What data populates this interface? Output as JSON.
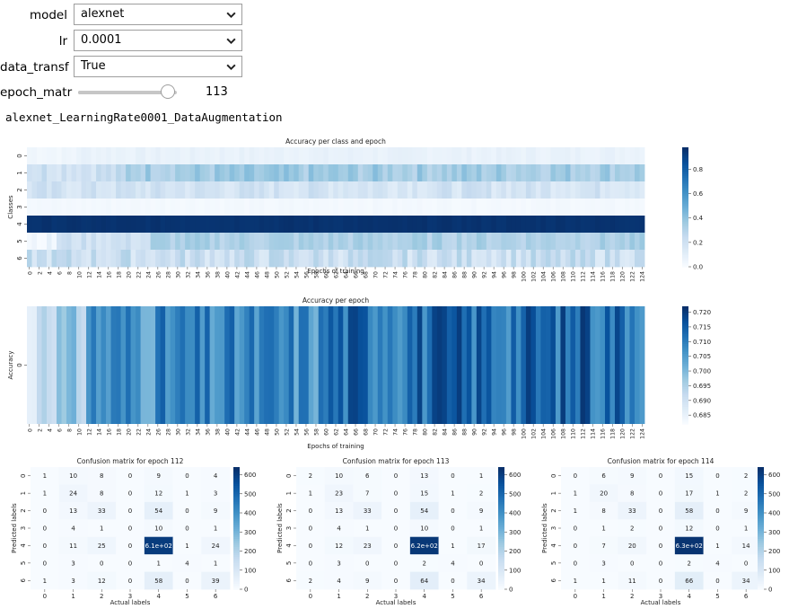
{
  "controls": {
    "model": {
      "label": "model",
      "value": "alexnet"
    },
    "lr": {
      "label": "lr",
      "value": "0.0001"
    },
    "data_transf": {
      "label": "data_transf",
      "value": "True"
    },
    "epoch_matr": {
      "label": "epoch_matr",
      "value": 113,
      "min": 0,
      "max": 124
    }
  },
  "output_title": "alexnet_LearningRate0001_DataAugmentation",
  "colors": {
    "cmap_light": "#f7fbff",
    "cmap_dark": "#08306b"
  },
  "chart_data": [
    {
      "type": "heatmap",
      "title": "Accuracy per class and epoch",
      "xlabel": "Epochs of training",
      "ylabel": "Classes",
      "rows": [
        "0",
        "1",
        "2",
        "3",
        "4",
        "5",
        "6"
      ],
      "epochs": 125,
      "colorbar": {
        "min": 0.0,
        "max": 0.98,
        "ticks": [
          "0.0",
          "0.2",
          "0.4",
          "0.6",
          "0.8"
        ]
      },
      "row_mean_values": [
        0.03,
        0.35,
        0.22,
        0.01,
        0.97,
        0.3,
        0.22
      ]
    },
    {
      "type": "heatmap",
      "title": "Accuracy per epoch",
      "xlabel": "Epochs of training",
      "ylabel": "Accuracy",
      "rows": [
        "0"
      ],
      "epochs": 125,
      "colorbar": {
        "min": 0.682,
        "max": 0.722,
        "ticks": [
          "0.685",
          "0.690",
          "0.695",
          "0.700",
          "0.705",
          "0.710",
          "0.715",
          "0.720"
        ]
      }
    },
    {
      "type": "heatmap",
      "title": "Confusion matrix for epoch 112",
      "xlabel": "Actual labels",
      "ylabel": "Predicted labels",
      "labels": [
        "0",
        "1",
        "2",
        "3",
        "4",
        "5",
        "6"
      ],
      "colorbar": {
        "min": 0,
        "max": 640,
        "ticks": [
          "0",
          "100",
          "200",
          "300",
          "400",
          "500",
          "600"
        ]
      },
      "values": [
        [
          1,
          10,
          8,
          0,
          9,
          0,
          4
        ],
        [
          1,
          24,
          8,
          0,
          12,
          1,
          3
        ],
        [
          0,
          13,
          33,
          0,
          54,
          0,
          9
        ],
        [
          0,
          4,
          1,
          0,
          10,
          0,
          1
        ],
        [
          0,
          11,
          25,
          0,
          610,
          1,
          24
        ],
        [
          0,
          3,
          0,
          0,
          1,
          4,
          1
        ],
        [
          1,
          3,
          12,
          0,
          58,
          0,
          39
        ]
      ],
      "text": [
        [
          "1",
          "10",
          "8",
          "0",
          "9",
          "0",
          "4"
        ],
        [
          "1",
          "24",
          "8",
          "0",
          "12",
          "1",
          "3"
        ],
        [
          "0",
          "13",
          "33",
          "0",
          "54",
          "0",
          "9"
        ],
        [
          "0",
          "4",
          "1",
          "0",
          "10",
          "0",
          "1"
        ],
        [
          "0",
          "11",
          "25",
          "0",
          "6.1e+02",
          "1",
          "24"
        ],
        [
          "0",
          "3",
          "0",
          "0",
          "1",
          "4",
          "1"
        ],
        [
          "1",
          "3",
          "12",
          "0",
          "58",
          "0",
          "39"
        ]
      ]
    },
    {
      "type": "heatmap",
      "title": "Confusion matrix for epoch 113",
      "xlabel": "Actual labels",
      "ylabel": "Predicted labels",
      "labels": [
        "0",
        "1",
        "2",
        "3",
        "4",
        "5",
        "6"
      ],
      "colorbar": {
        "min": 0,
        "max": 640,
        "ticks": [
          "0",
          "100",
          "200",
          "300",
          "400",
          "500",
          "600"
        ]
      },
      "values": [
        [
          2,
          10,
          6,
          0,
          13,
          0,
          1
        ],
        [
          1,
          23,
          7,
          0,
          15,
          1,
          2
        ],
        [
          0,
          13,
          33,
          0,
          54,
          0,
          9
        ],
        [
          0,
          4,
          1,
          0,
          10,
          0,
          1
        ],
        [
          0,
          12,
          23,
          0,
          620,
          1,
          17
        ],
        [
          0,
          3,
          0,
          0,
          2,
          4,
          0
        ],
        [
          2,
          4,
          9,
          0,
          64,
          0,
          34
        ]
      ],
      "text": [
        [
          "2",
          "10",
          "6",
          "0",
          "13",
          "0",
          "1"
        ],
        [
          "1",
          "23",
          "7",
          "0",
          "15",
          "1",
          "2"
        ],
        [
          "0",
          "13",
          "33",
          "0",
          "54",
          "0",
          "9"
        ],
        [
          "0",
          "4",
          "1",
          "0",
          "10",
          "0",
          "1"
        ],
        [
          "0",
          "12",
          "23",
          "0",
          "6.2e+02",
          "1",
          "17"
        ],
        [
          "0",
          "3",
          "0",
          "0",
          "2",
          "4",
          "0"
        ],
        [
          "2",
          "4",
          "9",
          "0",
          "64",
          "0",
          "34"
        ]
      ]
    },
    {
      "type": "heatmap",
      "title": "Confusion matrix for epoch 114",
      "xlabel": "Actual labels",
      "ylabel": "Predicted labels",
      "labels": [
        "0",
        "1",
        "2",
        "3",
        "4",
        "5",
        "6"
      ],
      "colorbar": {
        "min": 0,
        "max": 640,
        "ticks": [
          "0",
          "100",
          "200",
          "300",
          "400",
          "500",
          "600"
        ]
      },
      "values": [
        [
          0,
          6,
          9,
          0,
          15,
          0,
          2
        ],
        [
          1,
          20,
          8,
          0,
          17,
          1,
          2
        ],
        [
          1,
          8,
          33,
          0,
          58,
          0,
          9
        ],
        [
          0,
          1,
          2,
          0,
          12,
          0,
          1
        ],
        [
          0,
          7,
          20,
          0,
          630,
          1,
          14
        ],
        [
          0,
          3,
          0,
          0,
          2,
          4,
          0
        ],
        [
          1,
          1,
          11,
          0,
          66,
          0,
          34
        ]
      ],
      "text": [
        [
          "0",
          "6",
          "9",
          "0",
          "15",
          "0",
          "2"
        ],
        [
          "1",
          "20",
          "8",
          "0",
          "17",
          "1",
          "2"
        ],
        [
          "1",
          "8",
          "33",
          "0",
          "58",
          "0",
          "9"
        ],
        [
          "0",
          "1",
          "2",
          "0",
          "12",
          "0",
          "1"
        ],
        [
          "0",
          "7",
          "20",
          "0",
          "6.3e+02",
          "1",
          "14"
        ],
        [
          "0",
          "3",
          "0",
          "0",
          "2",
          "4",
          "0"
        ],
        [
          "1",
          "1",
          "11",
          "0",
          "66",
          "0",
          "34"
        ]
      ]
    }
  ]
}
